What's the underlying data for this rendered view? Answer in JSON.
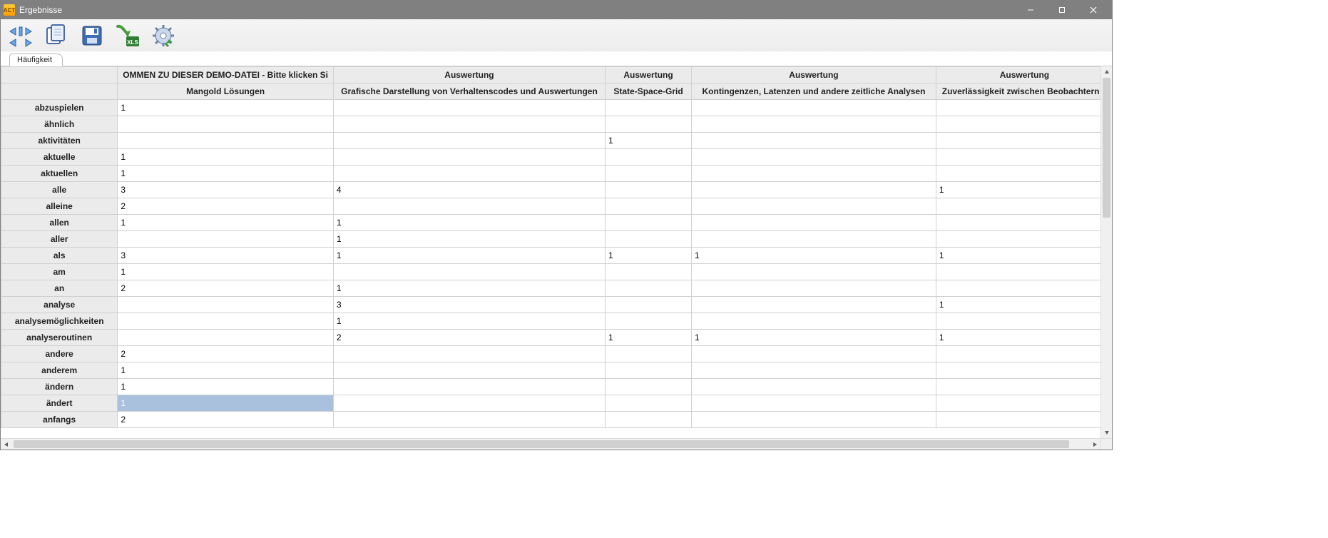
{
  "window": {
    "title": "Ergebnisse"
  },
  "tabs": {
    "active": "Häufigkeit"
  },
  "toolbar": {
    "nav_icon": "navigate",
    "copy_icon": "copy",
    "save_icon": "save",
    "export_xls_icon": "export-xls",
    "settings_icon": "settings"
  },
  "grid": {
    "header_row1": {
      "c0": "",
      "c1": "OMMEN ZU DIESER DEMO-DATEI - Bitte klicken Si",
      "c2": "Auswertung",
      "c3": "Auswertung",
      "c4": "Auswertung",
      "c5": "Auswertung"
    },
    "header_row2": {
      "c0": "",
      "c1": "Mangold Lösungen",
      "c2": "Grafische Darstellung von Verhaltenscodes und Auswertungen",
      "c3": "State-Space-Grid",
      "c4": "Kontingenzen, Latenzen und andere zeitliche Analysen",
      "c5": "Zuverlässigkeit zwischen Beobachtern b"
    },
    "rows": [
      {
        "label": "abzuspielen",
        "c1": "1",
        "c2": "",
        "c3": "",
        "c4": "",
        "c5": ""
      },
      {
        "label": "ähnlich",
        "c1": "",
        "c2": "",
        "c3": "",
        "c4": "",
        "c5": ""
      },
      {
        "label": "aktivitäten",
        "c1": "",
        "c2": "",
        "c3": "1",
        "c4": "",
        "c5": ""
      },
      {
        "label": "aktuelle",
        "c1": "1",
        "c2": "",
        "c3": "",
        "c4": "",
        "c5": ""
      },
      {
        "label": "aktuellen",
        "c1": "1",
        "c2": "",
        "c3": "",
        "c4": "",
        "c5": ""
      },
      {
        "label": "alle",
        "c1": "3",
        "c2": "4",
        "c3": "",
        "c4": "",
        "c5": "1"
      },
      {
        "label": "alleine",
        "c1": "2",
        "c2": "",
        "c3": "",
        "c4": "",
        "c5": ""
      },
      {
        "label": "allen",
        "c1": "1",
        "c2": "1",
        "c3": "",
        "c4": "",
        "c5": ""
      },
      {
        "label": "aller",
        "c1": "",
        "c2": "1",
        "c3": "",
        "c4": "",
        "c5": ""
      },
      {
        "label": "als",
        "c1": "3",
        "c2": "1",
        "c3": "1",
        "c4": "1",
        "c5": "1"
      },
      {
        "label": "am",
        "c1": "1",
        "c2": "",
        "c3": "",
        "c4": "",
        "c5": ""
      },
      {
        "label": "an",
        "c1": "2",
        "c2": "1",
        "c3": "",
        "c4": "",
        "c5": ""
      },
      {
        "label": "analyse",
        "c1": "",
        "c2": "3",
        "c3": "",
        "c4": "",
        "c5": "1"
      },
      {
        "label": "analysemöglichkeiten",
        "c1": "",
        "c2": "1",
        "c3": "",
        "c4": "",
        "c5": ""
      },
      {
        "label": "analyseroutinen",
        "c1": "",
        "c2": "2",
        "c3": "1",
        "c4": "1",
        "c5": "1"
      },
      {
        "label": "andere",
        "c1": "2",
        "c2": "",
        "c3": "",
        "c4": "",
        "c5": ""
      },
      {
        "label": "anderem",
        "c1": "1",
        "c2": "",
        "c3": "",
        "c4": "",
        "c5": ""
      },
      {
        "label": "ändern",
        "c1": "1",
        "c2": "",
        "c3": "",
        "c4": "",
        "c5": ""
      },
      {
        "label": "ändert",
        "c1": "1",
        "c2": "",
        "c3": "",
        "c4": "",
        "c5": "",
        "selected": true
      },
      {
        "label": "anfangs",
        "c1": "2",
        "c2": "",
        "c3": "",
        "c4": "",
        "c5": ""
      }
    ]
  }
}
